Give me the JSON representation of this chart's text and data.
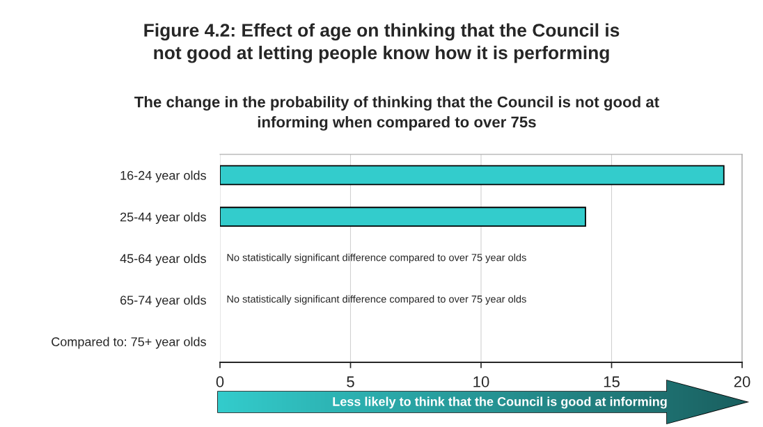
{
  "chart_data": {
    "type": "bar",
    "orientation": "horizontal",
    "title": "Figure 4.2: Effect of age on thinking that the Council is\nnot good at letting people know how it is performing",
    "subtitle": "The change in the probability of thinking that the Council is not good at\ninforming when compared to over 75s",
    "categories": [
      "16-24 year olds",
      "25-44 year olds",
      "45-64 year olds",
      "65-74 year olds",
      "Compared to: 75+ year olds"
    ],
    "values": [
      19.3,
      14.0,
      null,
      null,
      null
    ],
    "color": "#33cccc",
    "xlim": [
      0,
      20
    ],
    "xticks": [
      0,
      5,
      10,
      15,
      20
    ],
    "grid": "x",
    "annotations": [
      "No statistically significant difference compared to over 75 year olds",
      "No statistically significant difference compared to over 75 year olds",
      "Less likely to think that the Council is good at informing"
    ]
  }
}
